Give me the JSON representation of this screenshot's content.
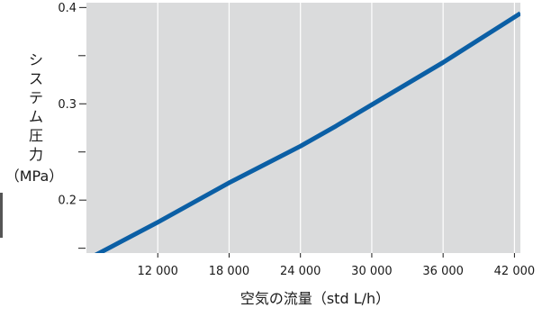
{
  "chart_data": {
    "type": "line",
    "xlabel": "空気の流量（std L/h）",
    "ylabel_chars": [
      "シ",
      "ス",
      "テ",
      "ム",
      "圧",
      "力"
    ],
    "ylabel_unit": "（MPa）",
    "xlim": [
      6000,
      42500
    ],
    "ylim": [
      0.145,
      0.405
    ],
    "x_ticks": [
      12000,
      18000,
      24000,
      30000,
      36000,
      42000
    ],
    "x_tick_labels": [
      "12 000",
      "18 000",
      "24 000",
      "30 000",
      "36 000",
      "42 000"
    ],
    "y_ticks_labeled": [
      0.2,
      0.3,
      0.4
    ],
    "y_tick_labels": [
      "0.2",
      "0.3",
      "0.4"
    ],
    "y_ticks_minor": [
      0.15,
      0.25,
      0.35
    ],
    "grid": "vertical",
    "series": [
      {
        "x": [
          6000,
          12000,
          18000,
          21000,
          24000,
          27000,
          30000,
          36000,
          42500
        ],
        "y": [
          0.138,
          0.177,
          0.218,
          0.237,
          0.256,
          0.277,
          0.299,
          0.343,
          0.394
        ]
      }
    ],
    "colors": {
      "line": "#0b5fa5",
      "plot_bg": "#dadbdc",
      "grid": "#ffffff",
      "axis": "#1a1a1a"
    }
  }
}
